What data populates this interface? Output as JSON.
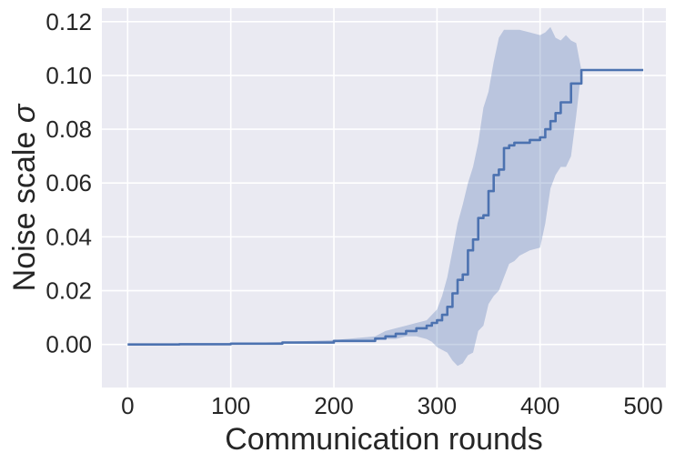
{
  "chart_data": {
    "type": "line",
    "title": "",
    "xlabel": "Communication rounds",
    "ylabel": "Noise scale σ",
    "ylabel_text": "Noise scale ",
    "ylabel_symbol": "σ",
    "xlim": [
      -25,
      522
    ],
    "ylim": [
      -0.016,
      0.125
    ],
    "x_ticks": [
      0,
      100,
      200,
      300,
      400,
      500
    ],
    "x_tick_labels": [
      "0",
      "100",
      "200",
      "300",
      "400",
      "500"
    ],
    "y_ticks": [
      0.0,
      0.02,
      0.04,
      0.06,
      0.08,
      0.1,
      0.12
    ],
    "y_tick_labels": [
      "0.00",
      "0.02",
      "0.04",
      "0.06",
      "0.08",
      "0.10",
      "0.12"
    ],
    "grid": true,
    "legend": "none",
    "colors": {
      "background": "#EAEAF2",
      "grid": "#FFFFFF",
      "line": "#4C72B0",
      "band": "#4C72B0"
    },
    "series": [
      {
        "x": [
          0,
          50,
          100,
          150,
          200,
          240,
          250,
          260,
          270,
          280,
          290,
          295,
          300,
          305,
          310,
          315,
          320,
          325,
          330,
          335,
          340,
          345,
          350,
          355,
          360,
          365,
          370,
          375,
          380,
          390,
          400,
          405,
          410,
          415,
          420,
          425,
          430,
          435,
          440,
          450,
          460,
          470,
          480,
          490,
          500
        ],
        "y": [
          0.0,
          0.0001,
          0.0003,
          0.0007,
          0.0013,
          0.0022,
          0.003,
          0.004,
          0.005,
          0.006,
          0.007,
          0.008,
          0.009,
          0.011,
          0.014,
          0.019,
          0.024,
          0.026,
          0.035,
          0.039,
          0.047,
          0.048,
          0.057,
          0.063,
          0.065,
          0.073,
          0.074,
          0.075,
          0.075,
          0.076,
          0.077,
          0.08,
          0.083,
          0.086,
          0.09,
          0.09,
          0.097,
          0.097,
          0.102,
          0.102,
          0.102,
          0.102,
          0.102,
          0.102,
          0.102
        ],
        "lower": [
          0.0,
          0.0001,
          0.0002,
          0.0005,
          0.001,
          0.0015,
          0.002,
          0.002,
          0.003,
          0.003,
          0.002,
          0.001,
          -0.001,
          -0.002,
          -0.003,
          -0.006,
          -0.008,
          -0.007,
          -0.004,
          -0.003,
          0.005,
          0.007,
          0.015,
          0.018,
          0.02,
          0.025,
          0.03,
          0.031,
          0.033,
          0.035,
          0.036,
          0.045,
          0.058,
          0.063,
          0.066,
          0.066,
          0.07,
          0.085,
          0.102,
          0.102,
          0.102,
          0.102,
          0.102,
          0.102,
          0.102
        ],
        "upper": [
          0.0,
          0.0002,
          0.0004,
          0.0009,
          0.0016,
          0.003,
          0.005,
          0.006,
          0.007,
          0.008,
          0.009,
          0.011,
          0.013,
          0.018,
          0.025,
          0.035,
          0.045,
          0.052,
          0.06,
          0.066,
          0.075,
          0.088,
          0.094,
          0.105,
          0.114,
          0.117,
          0.117,
          0.117,
          0.117,
          0.116,
          0.115,
          0.116,
          0.118,
          0.114,
          0.113,
          0.115,
          0.113,
          0.112,
          0.102,
          0.102,
          0.102,
          0.102,
          0.102,
          0.102,
          0.102
        ]
      }
    ]
  }
}
